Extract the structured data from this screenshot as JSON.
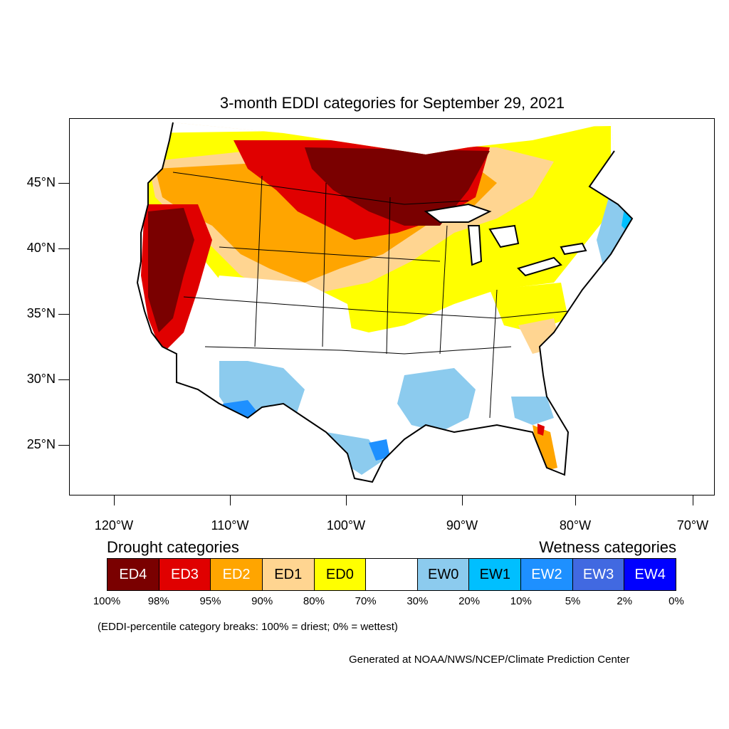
{
  "title": "3-month EDDI categories for September 29, 2021",
  "axes": {
    "lat_labels": [
      "45°N",
      "40°N",
      "35°N",
      "30°N",
      "25°N"
    ],
    "lon_labels": [
      "120°W",
      "110°W",
      "100°W",
      "90°W",
      "80°W",
      "70°W"
    ]
  },
  "legend": {
    "drought_title": "Drought categories",
    "wetness_title": "Wetness categories",
    "categories": [
      {
        "label": "ED4",
        "color": "#7a0000",
        "text_color": "#ffffff"
      },
      {
        "label": "ED3",
        "color": "#e00000",
        "text_color": "#ffffff"
      },
      {
        "label": "ED2",
        "color": "#ffa500",
        "text_color": "#ffffff"
      },
      {
        "label": "ED1",
        "color": "#ffd591",
        "text_color": "#000000"
      },
      {
        "label": "ED0",
        "color": "#ffff00",
        "text_color": "#000000"
      },
      {
        "label": "",
        "color": "#ffffff",
        "text_color": "#000000"
      },
      {
        "label": "EW0",
        "color": "#8ccbee",
        "text_color": "#000000"
      },
      {
        "label": "EW1",
        "color": "#00bfff",
        "text_color": "#000000"
      },
      {
        "label": "EW2",
        "color": "#1e90ff",
        "text_color": "#ffffff"
      },
      {
        "label": "EW3",
        "color": "#4169e1",
        "text_color": "#ffffff"
      },
      {
        "label": "EW4",
        "color": "#0000ff",
        "text_color": "#ffffff"
      }
    ],
    "percentiles": [
      "100%",
      "98%",
      "95%",
      "90%",
      "80%",
      "70%",
      "30%",
      "20%",
      "10%",
      "5%",
      "2%",
      "0%"
    ]
  },
  "note": "(EDDI-percentile category breaks: 100% = driest; 0% = wettest)",
  "credit": "Generated at NOAA/NWS/NCEP/Climate Prediction Center"
}
